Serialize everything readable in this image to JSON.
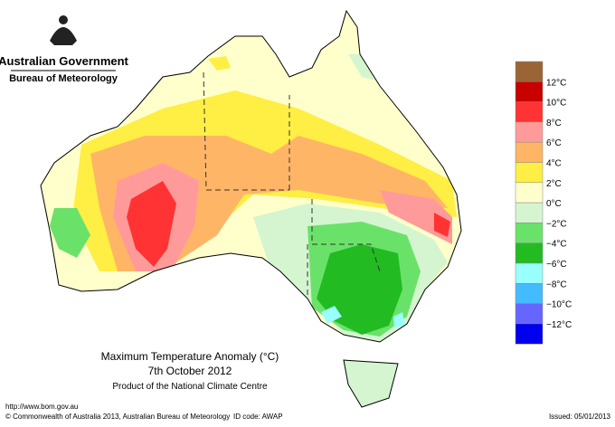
{
  "header": {
    "agency": "Australian Government",
    "bureau": "Bureau of Meteorology"
  },
  "map": {
    "title": "Maximum Temperature Anomaly (°C)",
    "date": "7th October 2012",
    "product": "Product of the National Climate Centre"
  },
  "legend": {
    "colors": [
      "#9a6534",
      "#c80000",
      "#ff3333",
      "#ff9a9a",
      "#ffb566",
      "#ffee44",
      "#ffffcc",
      "#d4f5d0",
      "#6ae26a",
      "#22bb22",
      "#99ffff",
      "#44bbff",
      "#6666ff",
      "#0000ee"
    ],
    "labels": [
      "12°C",
      "10°C",
      "8°C",
      "6°C",
      "4°C",
      "2°C",
      "0°C",
      "−2°C",
      "−4°C",
      "−6°C",
      "−8°C",
      "−10°C",
      "−12°C"
    ]
  },
  "footer": {
    "url": "http://www.bom.gov.au",
    "copyright": "© Commonwealth of Australia 2013, Australian Bureau of Meteorology",
    "id_code": "ID code: AWAP",
    "issued": "Issued: 05/01/2013"
  }
}
